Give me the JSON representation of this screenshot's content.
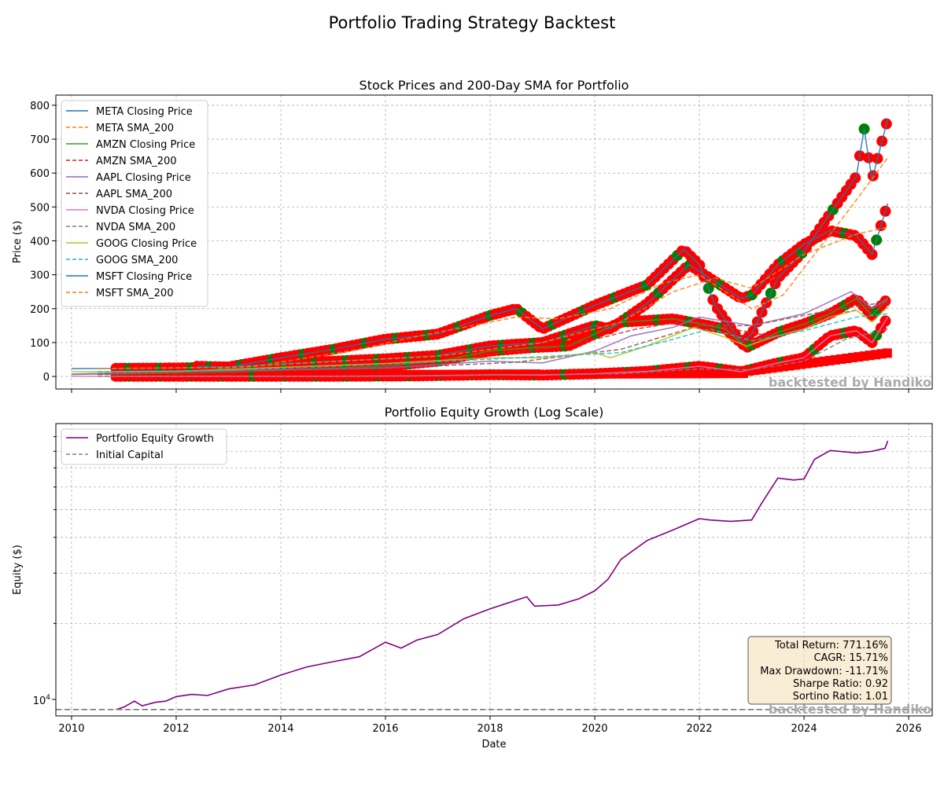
{
  "suptitle": "Portfolio Trading Strategy Backtest",
  "watermark": "backtested by Handiko",
  "chart_data": [
    {
      "type": "line",
      "title": "Stock Prices and 200-Day SMA for Portfolio",
      "ylabel": "Price ($)",
      "xlabel": "",
      "xlim": [
        2009.7,
        2026.45
      ],
      "ylim": [
        -37,
        830
      ],
      "yticks": [
        0,
        100,
        200,
        300,
        400,
        500,
        600,
        700,
        800
      ],
      "grid": true,
      "legend_position": "upper-left",
      "legend": [
        {
          "label": "META Closing Price",
          "color": "#1f77b4",
          "dash": false
        },
        {
          "label": "META SMA_200",
          "color": "#ff7f0e",
          "dash": true
        },
        {
          "label": "AMZN Closing Price",
          "color": "#2ca02c",
          "dash": false
        },
        {
          "label": "AMZN SMA_200",
          "color": "#d62728",
          "dash": true
        },
        {
          "label": "AAPL Closing Price",
          "color": "#9467bd",
          "dash": false
        },
        {
          "label": "AAPL SMA_200",
          "color": "#8c564b",
          "dash": true
        },
        {
          "label": "NVDA Closing Price",
          "color": "#e377c2",
          "dash": false
        },
        {
          "label": "NVDA SMA_200",
          "color": "#7f7f7f",
          "dash": true
        },
        {
          "label": "GOOG Closing Price",
          "color": "#bcbd22",
          "dash": false
        },
        {
          "label": "GOOG SMA_200",
          "color": "#17becf",
          "dash": true
        },
        {
          "label": "MSFT Closing Price",
          "color": "#1f77b4",
          "dash": false
        },
        {
          "label": "MSFT SMA_200",
          "color": "#ff7f0e",
          "dash": true
        }
      ],
      "series": [
        {
          "name": "META Closing Price",
          "color": "#1f77b4",
          "dash": false,
          "x": [
            2012.4,
            2013.0,
            2014.0,
            2015.0,
            2016.0,
            2017.0,
            2018.0,
            2018.5,
            2019.0,
            2020.0,
            2021.0,
            2021.7,
            2022.0,
            2022.3,
            2022.8,
            2023.0,
            2023.5,
            2024.0,
            2024.5,
            2025.0,
            2025.15,
            2025.3,
            2025.6
          ],
          "y": [
            30,
            28,
            55,
            80,
            110,
            125,
            180,
            200,
            140,
            210,
            270,
            375,
            330,
            210,
            100,
            125,
            290,
            370,
            480,
            590,
            730,
            580,
            760
          ]
        },
        {
          "name": "META SMA_200",
          "color": "#ff7f0e",
          "dash": true,
          "x": [
            2012.8,
            2013.5,
            2014.5,
            2015.5,
            2016.5,
            2017.5,
            2018.5,
            2019.3,
            2020.3,
            2021.3,
            2022.0,
            2022.6,
            2023.0,
            2023.6,
            2024.3,
            2024.9,
            2025.6
          ],
          "y": [
            25,
            30,
            55,
            80,
            115,
            145,
            175,
            170,
            200,
            275,
            300,
            240,
            200,
            240,
            380,
            500,
            645
          ]
        },
        {
          "name": "AMZN Closing Price",
          "color": "#2ca02c",
          "dash": false,
          "x": [
            2010.0,
            2012.0,
            2014.0,
            2016.0,
            2017.0,
            2018.0,
            2018.8,
            2019.5,
            2020.5,
            2021.5,
            2022.5,
            2022.9,
            2023.5,
            2024.0,
            2024.5,
            2025.0,
            2025.3,
            2025.6
          ],
          "y": [
            6,
            10,
            18,
            30,
            45,
            75,
            85,
            90,
            160,
            170,
            140,
            85,
            130,
            155,
            185,
            230,
            180,
            230
          ]
        },
        {
          "name": "AMZN SMA_200",
          "color": "#d62728",
          "dash": true,
          "x": [
            2010.5,
            2013.0,
            2016.0,
            2018.0,
            2019.5,
            2020.8,
            2021.8,
            2022.8,
            2023.5,
            2024.5,
            2025.6
          ],
          "y": [
            6,
            12,
            28,
            65,
            90,
            140,
            165,
            135,
            115,
            180,
            215
          ]
        },
        {
          "name": "AAPL Closing Price",
          "color": "#9467bd",
          "dash": false,
          "x": [
            2010.0,
            2012.0,
            2014.0,
            2016.0,
            2018.0,
            2019.0,
            2020.0,
            2020.7,
            2021.5,
            2022.0,
            2023.0,
            2024.0,
            2024.9,
            2025.3,
            2025.6
          ],
          "y": [
            7,
            15,
            20,
            25,
            45,
            40,
            75,
            120,
            145,
            175,
            150,
            185,
            250,
            200,
            230
          ]
        },
        {
          "name": "AAPL SMA_200",
          "color": "#8c564b",
          "dash": true,
          "x": [
            2010.5,
            2013.0,
            2016.0,
            2018.5,
            2020.5,
            2022.0,
            2023.0,
            2024.5,
            2025.6
          ],
          "y": [
            7,
            16,
            24,
            42,
            80,
            150,
            150,
            195,
            220
          ]
        },
        {
          "name": "NVDA Closing Price",
          "color": "#e377c2",
          "dash": false,
          "x": [
            2010.0,
            2015.0,
            2016.5,
            2018.0,
            2019.0,
            2020.0,
            2021.0,
            2022.0,
            2022.8,
            2023.5,
            2024.0,
            2024.5,
            2025.0,
            2025.3,
            2025.6
          ],
          "y": [
            0.5,
            0.5,
            1.5,
            5,
            4,
            8,
            15,
            30,
            14,
            40,
            55,
            120,
            135,
            100,
            175
          ]
        },
        {
          "name": "NVDA SMA_200",
          "color": "#7f7f7f",
          "dash": true,
          "x": [
            2010.5,
            2016.0,
            2018.5,
            2020.5,
            2022.0,
            2023.0,
            2024.0,
            2024.8,
            2025.6
          ],
          "y": [
            0.5,
            1,
            5,
            8,
            22,
            20,
            45,
            110,
            140
          ]
        },
        {
          "name": "GOOG Closing Price",
          "color": "#bcbd22",
          "dash": false,
          "x": [
            2010.0,
            2012.0,
            2014.0,
            2016.0,
            2018.0,
            2019.0,
            2020.0,
            2020.3,
            2021.0,
            2021.9,
            2022.5,
            2022.9,
            2023.5,
            2024.0,
            2024.5,
            2025.0,
            2025.3,
            2025.6
          ],
          "y": [
            14,
            15,
            27,
            38,
            55,
            55,
            70,
            55,
            90,
            145,
            115,
            90,
            120,
            140,
            175,
            195,
            160,
            205
          ]
        },
        {
          "name": "GOOG SMA_200",
          "color": "#17becf",
          "dash": true,
          "x": [
            2010.5,
            2013.0,
            2016.0,
            2018.5,
            2020.5,
            2021.5,
            2022.2,
            2023.0,
            2024.0,
            2025.0,
            2025.6
          ],
          "y": [
            14,
            18,
            36,
            55,
            70,
            110,
            140,
            105,
            135,
            175,
            185
          ]
        },
        {
          "name": "MSFT Closing Price",
          "color": "#1f77b4",
          "dash": false,
          "x": [
            2010.0,
            2012.0,
            2013.0,
            2014.0,
            2015.0,
            2016.0,
            2017.0,
            2018.0,
            2019.0,
            2020.0,
            2020.3,
            2021.0,
            2021.8,
            2022.3,
            2022.8,
            2023.0,
            2023.5,
            2024.0,
            2024.5,
            2025.0,
            2025.3,
            2025.6
          ],
          "y": [
            23,
            25,
            28,
            38,
            45,
            52,
            62,
            90,
            100,
            150,
            140,
            215,
            330,
            280,
            230,
            240,
            330,
            390,
            430,
            415,
            360,
            510
          ]
        },
        {
          "name": "MSFT SMA_200",
          "color": "#ff7f0e",
          "dash": true,
          "x": [
            2010.5,
            2013.0,
            2015.0,
            2017.0,
            2019.0,
            2020.5,
            2021.5,
            2022.3,
            2023.0,
            2024.0,
            2025.0,
            2025.6
          ],
          "y": [
            23,
            27,
            44,
            60,
            100,
            160,
            250,
            290,
            260,
            360,
            420,
            440
          ]
        }
      ]
    },
    {
      "type": "line",
      "title": "Portfolio Equity Growth (Log Scale)",
      "xlabel": "Date",
      "ylabel": "Equity ($)",
      "yscale": "log",
      "xlim": [
        2009.7,
        2026.45
      ],
      "ylim": [
        9500,
        100000
      ],
      "xticks": [
        "2010",
        "2012",
        "2014",
        "2016",
        "2018",
        "2020",
        "2022",
        "2024",
        "2026"
      ],
      "ytick_base": "10",
      "ytick_exp": "4",
      "grid": true,
      "legend_position": "upper-left",
      "legend": [
        {
          "label": "Portfolio Equity Growth",
          "color": "#800080",
          "dash": false
        },
        {
          "label": "Initial Capital",
          "color": "#808080",
          "dash": true
        }
      ],
      "series": [
        {
          "name": "Portfolio Equity Growth",
          "color": "#800080",
          "x": [
            2010.85,
            2011.0,
            2011.2,
            2011.35,
            2011.6,
            2011.8,
            2012.0,
            2012.3,
            2012.6,
            2013.0,
            2013.5,
            2014.0,
            2014.5,
            2015.0,
            2015.5,
            2016.0,
            2016.3,
            2016.6,
            2017.0,
            2017.5,
            2018.0,
            2018.7,
            2018.85,
            2019.3,
            2019.7,
            2020.0,
            2020.25,
            2020.5,
            2021.0,
            2021.5,
            2022.0,
            2022.2,
            2022.6,
            2023.0,
            2023.2,
            2023.5,
            2023.8,
            2024.0,
            2024.2,
            2024.5,
            2025.0,
            2025.3,
            2025.55,
            2025.6
          ],
          "y": [
            10000,
            10200,
            10700,
            10300,
            10600,
            10700,
            11100,
            11300,
            11200,
            11800,
            12200,
            13200,
            14100,
            14700,
            15300,
            17200,
            16400,
            17500,
            18300,
            20800,
            22500,
            24800,
            23000,
            23200,
            24400,
            26000,
            28500,
            33500,
            39000,
            42500,
            46500,
            46000,
            45500,
            46000,
            53000,
            64500,
            63500,
            64000,
            75000,
            80500,
            79000,
            80000,
            82000,
            87000
          ]
        },
        {
          "name": "Initial Capital",
          "color": "#808080",
          "dash": true,
          "x": [
            2009.7,
            2026.45
          ],
          "y": [
            10000,
            10000
          ]
        }
      ],
      "stats_box": [
        "Total Return: 771.16%",
        "CAGR: 15.71%",
        "Max Drawdown: -11.71%",
        "Sharpe Ratio: 0.92",
        "Sortino Ratio: 1.01"
      ]
    }
  ]
}
